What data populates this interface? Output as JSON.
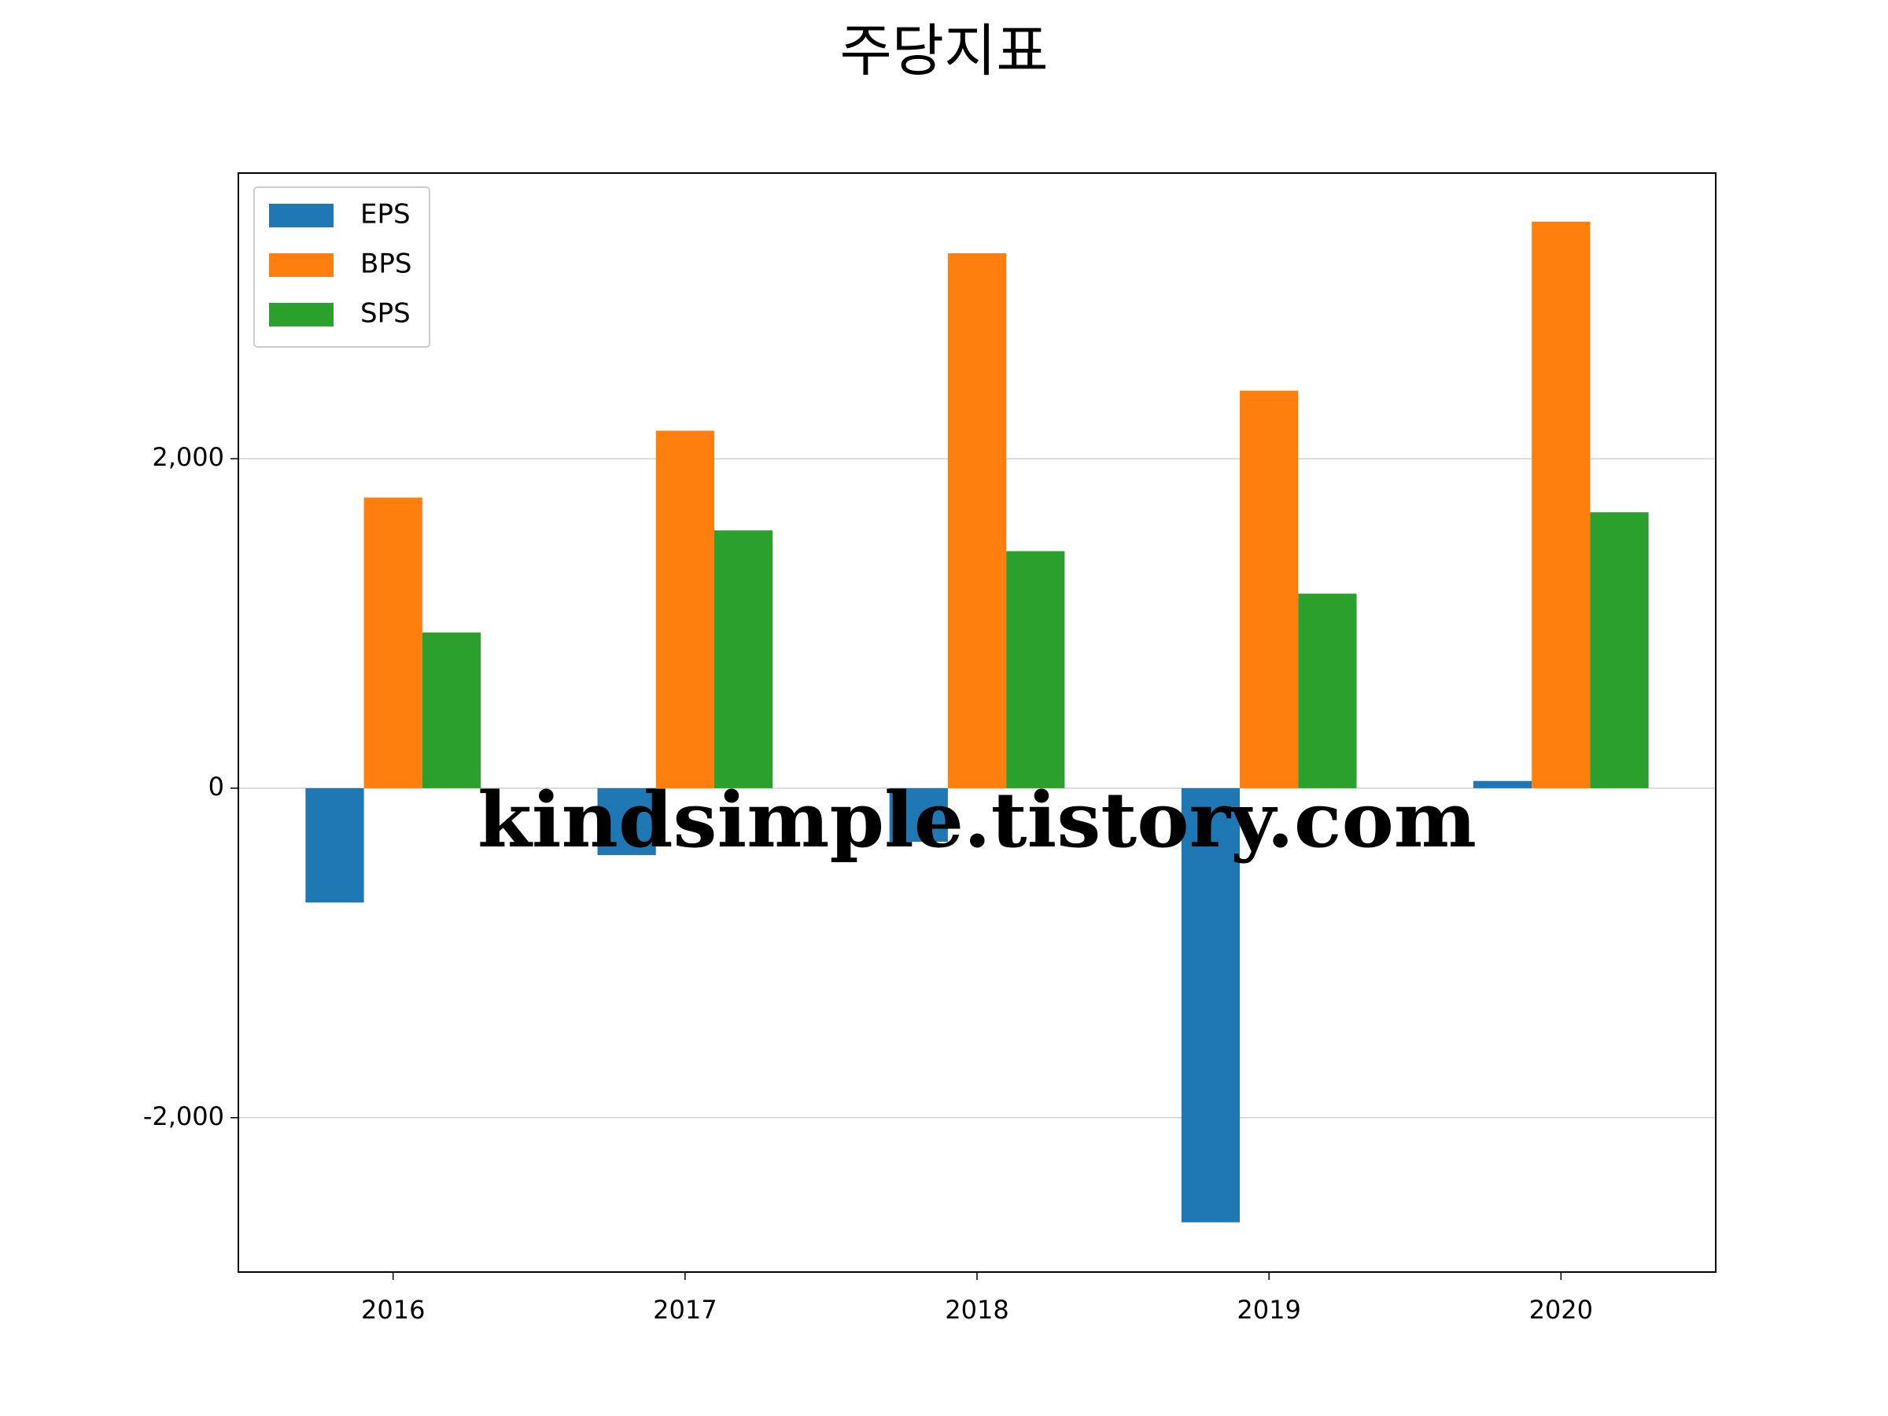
{
  "chart_data": {
    "type": "bar",
    "title": "주당지표",
    "categories": [
      "2016",
      "2017",
      "2018",
      "2019",
      "2020"
    ],
    "series": [
      {
        "name": "EPS",
        "color": "#1f77b4",
        "values": [
          -694,
          -406,
          -325,
          -2635,
          44
        ]
      },
      {
        "name": "BPS",
        "color": "#ff7f0e",
        "values": [
          1764,
          2170,
          3247,
          2413,
          3439
        ]
      },
      {
        "name": "SPS",
        "color": "#2ca02c",
        "values": [
          945,
          1565,
          1439,
          1181,
          1675
        ]
      }
    ],
    "ylim": [
      -2937,
      3734
    ],
    "yticks": [
      {
        "value": -2000,
        "label": "-2,000"
      },
      0,
      {
        "value": 2000,
        "label": "2,000"
      }
    ],
    "grid": true,
    "legend": "upper left",
    "watermark": "kindsimple.tistory.com"
  }
}
